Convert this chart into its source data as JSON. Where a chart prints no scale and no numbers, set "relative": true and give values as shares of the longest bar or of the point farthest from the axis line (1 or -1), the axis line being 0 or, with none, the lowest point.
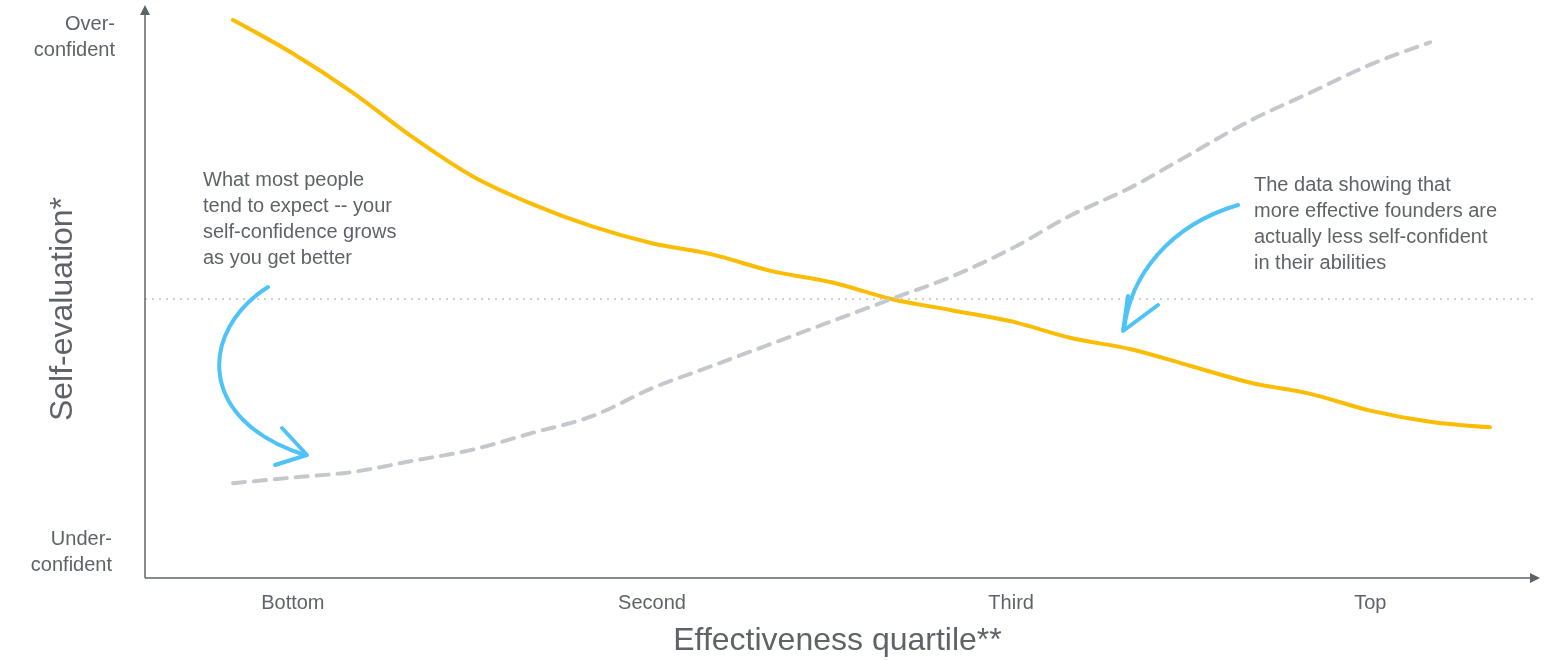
{
  "chart_data": {
    "type": "line",
    "relative": true,
    "xlabel": "Effectiveness quartile**",
    "ylabel": "Self-evaluation*",
    "categories": [
      null,
      "Bottom",
      null,
      null,
      null,
      null,
      null,
      "Second",
      null,
      null,
      null,
      null,
      null,
      "Third",
      null,
      null,
      null,
      null,
      null,
      "Top",
      null,
      null
    ],
    "tick_labels": "x",
    "marker": "none",
    "series": [
      {
        "color": "#fbbc04",
        "line_style": "solid",
        "values": [
          1.0,
          0.94,
          0.87,
          0.79,
          0.72,
          0.67,
          0.63,
          0.6,
          0.58,
          0.55,
          0.53,
          0.5,
          0.48,
          0.46,
          0.43,
          0.41,
          0.38,
          0.35,
          0.33,
          0.3,
          0.28,
          0.27
        ]
      },
      {
        "color": "#c4c7cc",
        "line_style": "dashed",
        "values": [
          0.17,
          0.18,
          0.19,
          0.21,
          0.23,
          0.26,
          0.29,
          0.34,
          0.38,
          0.42,
          0.46,
          0.5,
          0.54,
          0.59,
          0.65,
          0.7,
          0.76,
          0.82,
          0.87,
          0.92,
          0.96,
          null
        ]
      }
    ],
    "ref_lines": [
      {
        "axis": "y",
        "value": 0.5,
        "color": "#bdc1c6",
        "line_style": "dotted"
      }
    ],
    "annotations": [
      "Over-\nconfident",
      "Under-\nconfident",
      "What most people\ntend to expect -- your\nself-confidence grows\nas you get better",
      "The data showing that\nmore effective founders are\nactually less self-confident\nin their abilities"
    ]
  }
}
